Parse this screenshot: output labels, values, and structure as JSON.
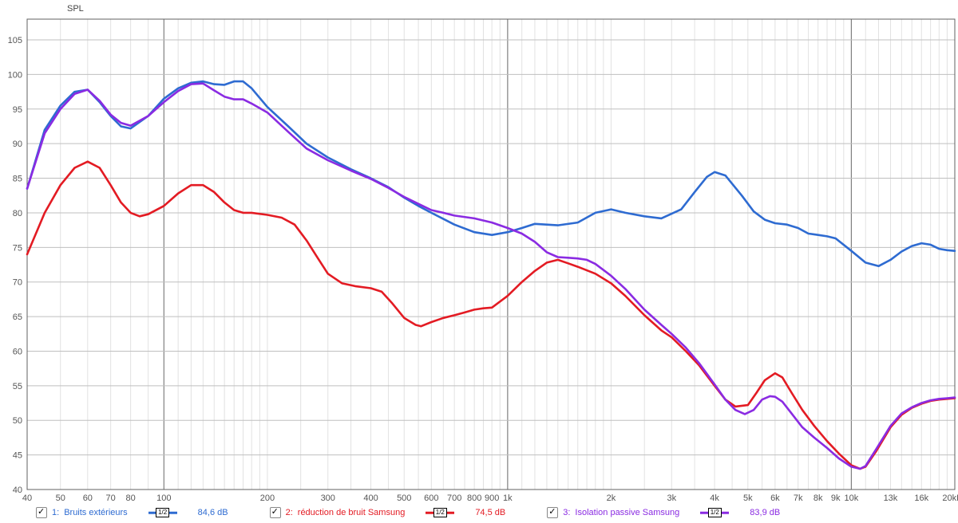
{
  "chart": {
    "type": "line",
    "y_title": "SPL",
    "x_scale": "log",
    "xlim": [
      40,
      20000
    ],
    "ylim": [
      40,
      108
    ],
    "ytick_step": 5,
    "background_color": "#ffffff",
    "grid_major_color": "#bfbfbf",
    "grid_minor_color": "#e2e2e2",
    "axis_color": "#888888",
    "label_fontsize": 11,
    "line_width": 2.6,
    "x_ticks_major": [
      40,
      50,
      60,
      70,
      80,
      100,
      200,
      300,
      400,
      500,
      600,
      700,
      800,
      900,
      "1k",
      "2k",
      "3k",
      "4k",
      "5k",
      "6k",
      "7k",
      "8k",
      "9k",
      "10k",
      "13k",
      "16k",
      "20kHz"
    ],
    "x_tick_values": [
      40,
      50,
      60,
      70,
      80,
      100,
      200,
      300,
      400,
      500,
      600,
      700,
      800,
      900,
      1000,
      2000,
      3000,
      4000,
      5000,
      6000,
      7000,
      8000,
      9000,
      10000,
      13000,
      16000,
      20000
    ],
    "x_grid_emphasis": [
      100,
      1000,
      10000
    ],
    "series": [
      {
        "id": "s1",
        "name": "Bruits extérieurs",
        "color": "#2e6bd1",
        "legend_prefix": "1:",
        "legend_value": "84,6 dB",
        "checked": true,
        "data": [
          [
            40,
            83.5
          ],
          [
            45,
            92
          ],
          [
            50,
            95.5
          ],
          [
            55,
            97.5
          ],
          [
            60,
            97.8
          ],
          [
            65,
            96
          ],
          [
            70,
            94
          ],
          [
            75,
            92.5
          ],
          [
            80,
            92.2
          ],
          [
            90,
            94
          ],
          [
            100,
            96.5
          ],
          [
            110,
            98
          ],
          [
            120,
            98.8
          ],
          [
            130,
            99
          ],
          [
            140,
            98.6
          ],
          [
            150,
            98.5
          ],
          [
            160,
            99
          ],
          [
            170,
            99
          ],
          [
            180,
            98
          ],
          [
            200,
            95.3
          ],
          [
            230,
            92.5
          ],
          [
            260,
            90
          ],
          [
            300,
            88
          ],
          [
            350,
            86.3
          ],
          [
            400,
            85
          ],
          [
            450,
            83.7
          ],
          [
            500,
            82.2
          ],
          [
            550,
            81
          ],
          [
            600,
            80
          ],
          [
            700,
            78.3
          ],
          [
            800,
            77.2
          ],
          [
            900,
            76.8
          ],
          [
            1000,
            77.2
          ],
          [
            1100,
            77.8
          ],
          [
            1200,
            78.4
          ],
          [
            1400,
            78.2
          ],
          [
            1600,
            78.6
          ],
          [
            1800,
            80
          ],
          [
            2000,
            80.5
          ],
          [
            2200,
            80
          ],
          [
            2500,
            79.5
          ],
          [
            2800,
            79.2
          ],
          [
            3200,
            80.5
          ],
          [
            3500,
            83
          ],
          [
            3800,
            85.2
          ],
          [
            4000,
            85.9
          ],
          [
            4300,
            85.4
          ],
          [
            4800,
            82.5
          ],
          [
            5200,
            80.2
          ],
          [
            5600,
            79
          ],
          [
            6000,
            78.5
          ],
          [
            6500,
            78.3
          ],
          [
            7000,
            77.8
          ],
          [
            7500,
            77
          ],
          [
            8000,
            76.8
          ],
          [
            8500,
            76.6
          ],
          [
            9000,
            76.3
          ],
          [
            10000,
            74.5
          ],
          [
            11000,
            72.8
          ],
          [
            12000,
            72.3
          ],
          [
            13000,
            73.2
          ],
          [
            14000,
            74.4
          ],
          [
            15000,
            75.2
          ],
          [
            16000,
            75.6
          ],
          [
            17000,
            75.4
          ],
          [
            18000,
            74.8
          ],
          [
            19000,
            74.6
          ],
          [
            20000,
            74.5
          ]
        ]
      },
      {
        "id": "s2",
        "name": "réduction de bruit Samsung",
        "color": "#e31b23",
        "legend_prefix": "2:",
        "legend_value": "74,5 dB",
        "checked": true,
        "data": [
          [
            40,
            74
          ],
          [
            45,
            80
          ],
          [
            50,
            84
          ],
          [
            55,
            86.5
          ],
          [
            60,
            87.4
          ],
          [
            65,
            86.5
          ],
          [
            70,
            84
          ],
          [
            75,
            81.5
          ],
          [
            80,
            80
          ],
          [
            85,
            79.5
          ],
          [
            90,
            79.8
          ],
          [
            100,
            81
          ],
          [
            110,
            82.8
          ],
          [
            120,
            84
          ],
          [
            130,
            84
          ],
          [
            140,
            83
          ],
          [
            150,
            81.5
          ],
          [
            160,
            80.4
          ],
          [
            170,
            80
          ],
          [
            180,
            80
          ],
          [
            200,
            79.7
          ],
          [
            220,
            79.3
          ],
          [
            240,
            78.3
          ],
          [
            260,
            76
          ],
          [
            280,
            73.5
          ],
          [
            300,
            71.2
          ],
          [
            330,
            69.8
          ],
          [
            360,
            69.4
          ],
          [
            400,
            69.1
          ],
          [
            430,
            68.6
          ],
          [
            460,
            67
          ],
          [
            500,
            64.8
          ],
          [
            540,
            63.8
          ],
          [
            560,
            63.6
          ],
          [
            600,
            64.2
          ],
          [
            650,
            64.8
          ],
          [
            700,
            65.2
          ],
          [
            750,
            65.6
          ],
          [
            800,
            66
          ],
          [
            850,
            66.2
          ],
          [
            900,
            66.3
          ],
          [
            1000,
            68
          ],
          [
            1100,
            70
          ],
          [
            1200,
            71.6
          ],
          [
            1300,
            72.8
          ],
          [
            1400,
            73.2
          ],
          [
            1500,
            72.7
          ],
          [
            1600,
            72.2
          ],
          [
            1800,
            71.2
          ],
          [
            2000,
            69.8
          ],
          [
            2200,
            68
          ],
          [
            2500,
            65.2
          ],
          [
            2800,
            63
          ],
          [
            3000,
            62
          ],
          [
            3300,
            60
          ],
          [
            3600,
            58
          ],
          [
            4000,
            55
          ],
          [
            4300,
            53
          ],
          [
            4600,
            52
          ],
          [
            5000,
            52.2
          ],
          [
            5300,
            54
          ],
          [
            5600,
            55.8
          ],
          [
            6000,
            56.8
          ],
          [
            6300,
            56.2
          ],
          [
            6700,
            54
          ],
          [
            7200,
            51.5
          ],
          [
            7800,
            49.2
          ],
          [
            8500,
            47
          ],
          [
            9200,
            45.2
          ],
          [
            10000,
            43.5
          ],
          [
            10600,
            43
          ],
          [
            11000,
            43.3
          ],
          [
            11800,
            45.5
          ],
          [
            13000,
            49
          ],
          [
            14000,
            50.8
          ],
          [
            15000,
            51.8
          ],
          [
            16000,
            52.4
          ],
          [
            17000,
            52.8
          ],
          [
            18000,
            53
          ],
          [
            19000,
            53.1
          ],
          [
            20000,
            53.2
          ]
        ]
      },
      {
        "id": "s3",
        "name": "Isolation passive Samsung",
        "color": "#8a2be2",
        "legend_prefix": "3:",
        "legend_value": "83,9 dB",
        "checked": true,
        "data": [
          [
            40,
            83.5
          ],
          [
            45,
            91.5
          ],
          [
            50,
            95
          ],
          [
            55,
            97.2
          ],
          [
            60,
            97.8
          ],
          [
            65,
            96.2
          ],
          [
            70,
            94.2
          ],
          [
            75,
            93
          ],
          [
            80,
            92.6
          ],
          [
            90,
            94
          ],
          [
            100,
            96
          ],
          [
            110,
            97.6
          ],
          [
            120,
            98.6
          ],
          [
            130,
            98.7
          ],
          [
            140,
            97.7
          ],
          [
            150,
            96.8
          ],
          [
            160,
            96.4
          ],
          [
            170,
            96.4
          ],
          [
            180,
            95.8
          ],
          [
            200,
            94.5
          ],
          [
            230,
            91.7
          ],
          [
            260,
            89.3
          ],
          [
            300,
            87.6
          ],
          [
            350,
            86.1
          ],
          [
            400,
            84.9
          ],
          [
            450,
            83.6
          ],
          [
            500,
            82.3
          ],
          [
            550,
            81.3
          ],
          [
            600,
            80.4
          ],
          [
            650,
            80
          ],
          [
            700,
            79.6
          ],
          [
            800,
            79.2
          ],
          [
            900,
            78.6
          ],
          [
            1000,
            77.8
          ],
          [
            1100,
            77
          ],
          [
            1200,
            75.8
          ],
          [
            1300,
            74.3
          ],
          [
            1400,
            73.6
          ],
          [
            1500,
            73.5
          ],
          [
            1600,
            73.4
          ],
          [
            1700,
            73.2
          ],
          [
            1800,
            72.6
          ],
          [
            2000,
            70.9
          ],
          [
            2200,
            69
          ],
          [
            2500,
            66
          ],
          [
            2800,
            63.8
          ],
          [
            3000,
            62.5
          ],
          [
            3300,
            60.5
          ],
          [
            3600,
            58.3
          ],
          [
            4000,
            55.2
          ],
          [
            4300,
            53
          ],
          [
            4600,
            51.5
          ],
          [
            4900,
            50.9
          ],
          [
            5200,
            51.5
          ],
          [
            5500,
            53
          ],
          [
            5800,
            53.5
          ],
          [
            6000,
            53.4
          ],
          [
            6300,
            52.7
          ],
          [
            6700,
            51
          ],
          [
            7200,
            49
          ],
          [
            7800,
            47.5
          ],
          [
            8500,
            46
          ],
          [
            9200,
            44.5
          ],
          [
            10000,
            43.3
          ],
          [
            10600,
            43
          ],
          [
            11000,
            43.4
          ],
          [
            11800,
            45.8
          ],
          [
            13000,
            49.2
          ],
          [
            14000,
            51
          ],
          [
            15000,
            51.9
          ],
          [
            16000,
            52.5
          ],
          [
            17000,
            52.9
          ],
          [
            18000,
            53.1
          ],
          [
            19000,
            53.2
          ],
          [
            20000,
            53.3
          ]
        ]
      }
    ]
  },
  "legend": {
    "swatch_label": "1/2"
  }
}
